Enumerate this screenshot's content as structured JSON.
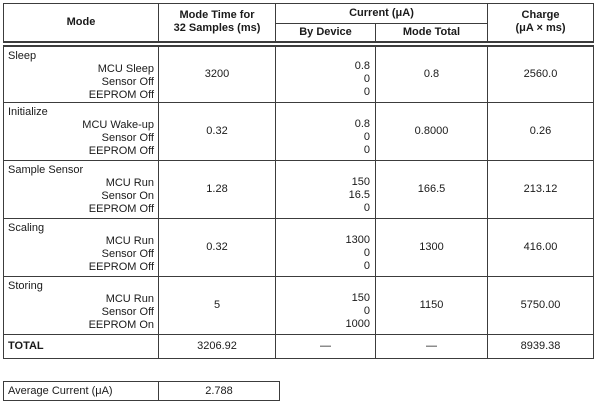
{
  "colors": {
    "background": "#ffffff",
    "text": "#1a1a1a",
    "border": "#3c3c3c"
  },
  "table": {
    "header": {
      "mode": "Mode",
      "mode_time": "Mode Time for\n32 Samples (ms)",
      "current": "Current (μA)",
      "by_device": "By Device",
      "mode_total": "Mode Total",
      "charge": "Charge\n(μA × ms)"
    },
    "sections": [
      {
        "name": "Sleep",
        "devices": [
          "MCU Sleep",
          "Sensor Off",
          "EEPROM Off"
        ],
        "mode_time": "3200",
        "by_device": [
          "0.8",
          "0",
          "0"
        ],
        "mode_total": "0.8",
        "charge": "2560.0"
      },
      {
        "name": "Initialize",
        "devices": [
          "MCU Wake-up",
          "Sensor Off",
          "EEPROM Off"
        ],
        "mode_time": "0.32",
        "by_device": [
          "0.8",
          "0",
          "0"
        ],
        "mode_total": "0.8000",
        "charge": "0.26"
      },
      {
        "name": "Sample Sensor",
        "devices": [
          "MCU Run",
          "Sensor On",
          "EEPROM Off"
        ],
        "mode_time": "1.28",
        "by_device": [
          "150",
          "16.5",
          "0"
        ],
        "mode_total": "166.5",
        "charge": "213.12"
      },
      {
        "name": "Scaling",
        "devices": [
          "MCU Run",
          "Sensor Off",
          "EEPROM Off"
        ],
        "mode_time": "0.32",
        "by_device": [
          "1300",
          "0",
          "0"
        ],
        "mode_total": "1300",
        "charge": "416.00"
      },
      {
        "name": "Storing",
        "devices": [
          "MCU Run",
          "Sensor Off",
          "EEPROM On"
        ],
        "mode_time": "5",
        "by_device": [
          "150",
          "0",
          "1000"
        ],
        "mode_total": "1150",
        "charge": "5750.00"
      }
    ],
    "total": {
      "label": "TOTAL",
      "mode_time": "3206.92",
      "by_device": "—",
      "mode_total": "—",
      "charge": "8939.38"
    }
  },
  "average": {
    "label": "Average Current (μA)",
    "value": "2.788"
  }
}
